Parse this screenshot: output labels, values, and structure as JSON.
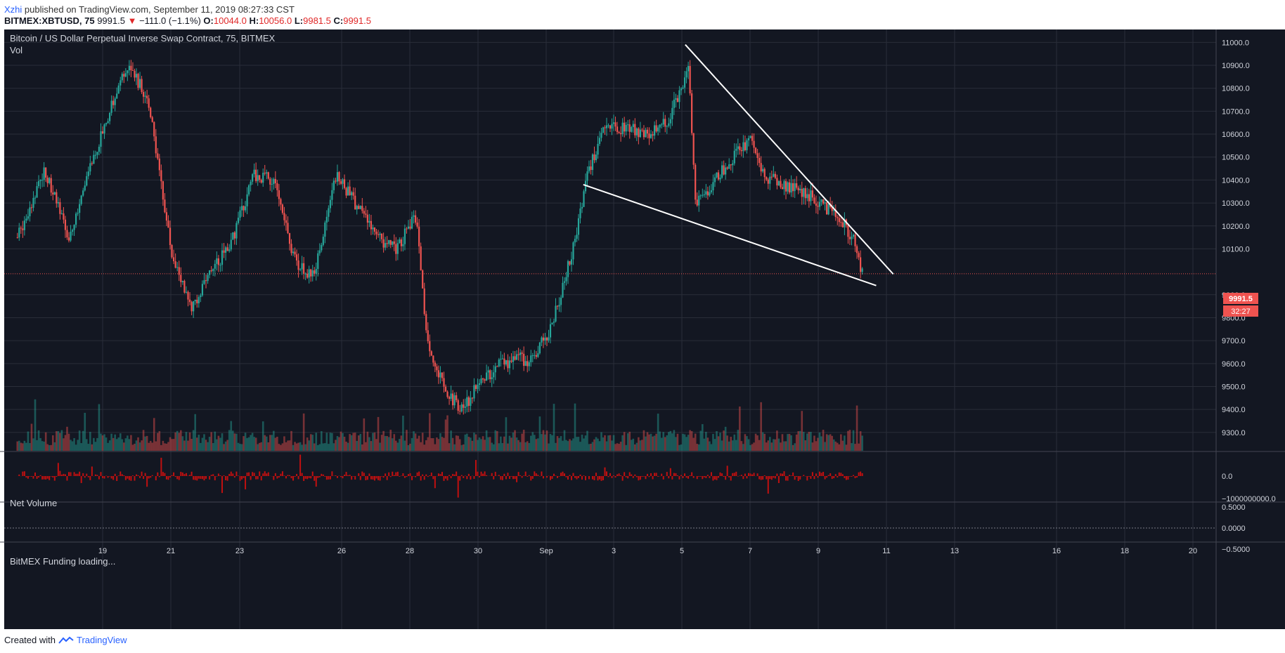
{
  "header": {
    "author": "Xzhi",
    "published_text": "published on TradingView.com, September 11, 2019 08:27:33 CST",
    "symbol": "BITMEX:XBTUSD, 75",
    "last": "9991.5",
    "change_arrow": "▼",
    "change": "−111.0 (−1.1%)",
    "o_label": "O:",
    "o_value": "10044.0",
    "h_label": "H:",
    "h_value": "10056.0",
    "l_label": "L:",
    "l_value": "9981.5",
    "c_label": "C:",
    "c_value": "9991.5"
  },
  "panes": {
    "main_title": "Bitcoin / US Dollar Perpetual Inverse Swap Contract, 75, BITMEX",
    "volume_label": "Vol",
    "net_volume_label": "Net Volume",
    "funding_label": "BitMEX Funding loading..."
  },
  "price_tag": {
    "value": "9991.5",
    "countdown": "32:27"
  },
  "footer": {
    "created_with": "Created with",
    "brand": "TradingView"
  },
  "colors": {
    "background": "#131722",
    "up": "#26a69a",
    "down": "#ef5350",
    "grid": "#2a2e39",
    "net_volume": "#c01010",
    "trendline": "#ffffff",
    "axis_text": "#d1d4dc"
  },
  "icons": {
    "brand_logo": "tradingview-logo-icon"
  },
  "chart_data": {
    "type": "candlestick",
    "title": "Bitcoin / US Dollar Perpetual Inverse Swap Contract, 75, BITMEX",
    "x_tick_labels": [
      "19",
      "21",
      "23",
      "26",
      "28",
      "30",
      "Sep",
      "3",
      "5",
      "7",
      "9",
      "11",
      "13",
      "16",
      "18",
      "20"
    ],
    "y_tick_labels": [
      "11000.0",
      "10900.0",
      "10800.0",
      "10700.0",
      "10600.0",
      "10500.0",
      "10400.0",
      "10300.0",
      "10200.0",
      "10100.0",
      "9900.0",
      "9800.0",
      "9700.0",
      "9600.0",
      "9500.0",
      "9400.0",
      "9300.0"
    ],
    "ylim": [
      9220,
      11050
    ],
    "last_price": 9991.5,
    "price_path": [
      [
        16.5,
        10150
      ],
      [
        17.3,
        10450
      ],
      [
        18.0,
        10150
      ],
      [
        18.5,
        10400
      ],
      [
        19.2,
        10700
      ],
      [
        19.8,
        10920
      ],
      [
        20.4,
        10700
      ],
      [
        21.0,
        10100
      ],
      [
        21.6,
        9830
      ],
      [
        22.2,
        10000
      ],
      [
        22.8,
        10150
      ],
      [
        23.4,
        10420
      ],
      [
        24.0,
        10400
      ],
      [
        24.6,
        10050
      ],
      [
        25.2,
        9980
      ],
      [
        25.8,
        10420
      ],
      [
        26.4,
        10300
      ],
      [
        27.0,
        10150
      ],
      [
        27.6,
        10100
      ],
      [
        28.2,
        10250
      ],
      [
        28.5,
        9700
      ],
      [
        29.0,
        9500
      ],
      [
        29.5,
        9400
      ],
      [
        30.0,
        9500
      ],
      [
        30.6,
        9600
      ],
      [
        31.2,
        9620
      ],
      [
        31.6,
        9610
      ],
      [
        32.2,
        9780
      ],
      [
        32.8,
        10100
      ],
      [
        33.2,
        10420
      ],
      [
        33.8,
        10650
      ],
      [
        34.4,
        10620
      ],
      [
        35.0,
        10600
      ],
      [
        35.6,
        10650
      ],
      [
        36.2,
        10900
      ],
      [
        36.4,
        10300
      ],
      [
        37.0,
        10400
      ],
      [
        37.6,
        10520
      ],
      [
        38.0,
        10580
      ],
      [
        38.4,
        10420
      ],
      [
        39.0,
        10380
      ],
      [
        39.6,
        10350
      ],
      [
        40.0,
        10300
      ],
      [
        40.6,
        10250
      ],
      [
        41.0,
        10150
      ],
      [
        41.3,
        9991.5
      ]
    ],
    "trendlines": [
      {
        "name": "upper",
        "points": [
          [
            36.1,
            10990
          ],
          [
            42.2,
            9990
          ]
        ]
      },
      {
        "name": "lower",
        "points": [
          [
            33.1,
            10380
          ],
          [
            41.7,
            9940
          ]
        ]
      }
    ],
    "net_volume_ticks": [
      "0.0",
      "−1000000000.0"
    ],
    "funding_ticks": [
      "0.5000",
      "0.0000",
      "−0.5000"
    ]
  }
}
